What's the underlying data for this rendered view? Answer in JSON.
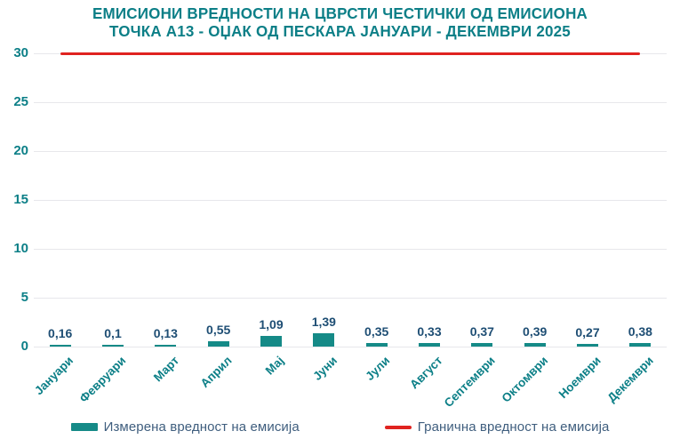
{
  "title": {
    "line1": "ЕМИСИОНИ ВРЕДНОСТИ НА ЦВРСТИ ЧЕСТИЧКИ ОД ЕМИСИОНА",
    "line2": "ТОЧКА А13 - ОЏАК ОД ПЕСКАРА ЈАНУАРИ - ДЕКЕМВРИ 2025"
  },
  "colors": {
    "teal_text": "#0c7f87",
    "bar": "#158a87",
    "navy": "#1e4e74",
    "red": "#e02320",
    "grid": "#e7e7eb",
    "legend_text": "#3f5e7e"
  },
  "chart_data": {
    "type": "bar",
    "title": "ЕМИСИОНИ ВРЕДНОСТИ НА ЦВРСТИ ЧЕСТИЧКИ ОД ЕМИСИОНА ТОЧКА А13 - ОЏАК ОД ПЕСКАРА ЈАНУАРИ - ДЕКЕМВРИ 2025",
    "categories": [
      "Јануари",
      "Февруари",
      "Март",
      "Април",
      "Мај",
      "Јуни",
      "Јули",
      "Август",
      "Септември",
      "Октомври",
      "Ноември",
      "Декември"
    ],
    "series": [
      {
        "name": "Измерена вредност на емисија",
        "type": "bar",
        "values": [
          0.16,
          0.1,
          0.13,
          0.55,
          1.09,
          1.39,
          0.35,
          0.33,
          0.37,
          0.39,
          0.27,
          0.38
        ],
        "value_labels": [
          "0,16",
          "0,1",
          "0,13",
          "0,55",
          "1,09",
          "1,39",
          "0,35",
          "0,33",
          "0,37",
          "0,39",
          "0,27",
          "0,38"
        ]
      },
      {
        "name": "Гранична вредност на емисија",
        "type": "line",
        "constant_value": 30
      }
    ],
    "xlabel": "",
    "ylabel": "",
    "ylim": [
      0,
      30
    ],
    "yticks": [
      0,
      5,
      10,
      15,
      20,
      25,
      30
    ],
    "grid": true,
    "legend_position": "bottom"
  },
  "legend": {
    "items": [
      {
        "label": "Измерена вредност на емисија",
        "swatch": "bar"
      },
      {
        "label": "Гранична вредност на емисија",
        "swatch": "line"
      }
    ]
  }
}
